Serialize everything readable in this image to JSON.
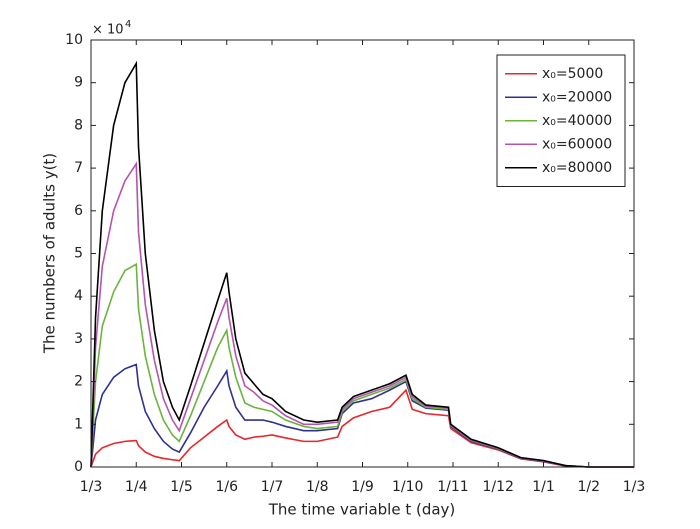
{
  "chart_data": {
    "type": "line",
    "x_label": "The time variable t (day)",
    "y_label": "The numbers of adults y(t)",
    "y_scale_base": "× 10",
    "y_scale_exponent": "4",
    "x": [
      0,
      0.1,
      0.25,
      0.5,
      0.75,
      1,
      1.05,
      1.2,
      1.4,
      1.6,
      1.8,
      1.95,
      2.2,
      2.5,
      2.8,
      3,
      3.05,
      3.2,
      3.4,
      3.6,
      3.8,
      4,
      4.3,
      4.7,
      5,
      5.45,
      5.55,
      5.8,
      6.2,
      6.6,
      6.96,
      7.1,
      7.4,
      7.9,
      7.95,
      8.4,
      9,
      9.5,
      10,
      10.5,
      11,
      12
    ],
    "series": [
      {
        "name": "x₀=5000",
        "color": "#e8262b",
        "values": [
          0,
          0.3,
          0.45,
          0.55,
          0.6,
          0.62,
          0.5,
          0.35,
          0.25,
          0.2,
          0.17,
          0.15,
          0.45,
          0.7,
          0.95,
          1.1,
          0.95,
          0.75,
          0.65,
          0.7,
          0.72,
          0.75,
          0.68,
          0.6,
          0.6,
          0.7,
          0.95,
          1.15,
          1.3,
          1.4,
          1.8,
          1.35,
          1.25,
          1.2,
          0.9,
          0.57,
          0.4,
          0.19,
          0.12,
          0.02,
          0,
          0
        ]
      },
      {
        "name": "x₀=20000",
        "color": "#2e3192",
        "values": [
          0,
          1.1,
          1.7,
          2.1,
          2.3,
          2.4,
          1.9,
          1.3,
          0.9,
          0.6,
          0.42,
          0.35,
          0.8,
          1.4,
          1.9,
          2.25,
          1.9,
          1.4,
          1.1,
          1.1,
          1.1,
          1.05,
          0.95,
          0.85,
          0.85,
          0.9,
          1.25,
          1.5,
          1.6,
          1.8,
          2.0,
          1.55,
          1.38,
          1.33,
          0.95,
          0.6,
          0.42,
          0.2,
          0.13,
          0.03,
          0,
          0
        ]
      },
      {
        "name": "x₀=40000",
        "color": "#6ab43e",
        "values": [
          0,
          2.0,
          3.3,
          4.1,
          4.6,
          4.75,
          3.7,
          2.6,
          1.7,
          1.1,
          0.75,
          0.6,
          1.2,
          2.0,
          2.8,
          3.2,
          2.8,
          2.1,
          1.5,
          1.4,
          1.35,
          1.3,
          1.1,
          0.95,
          0.9,
          0.95,
          1.3,
          1.55,
          1.7,
          1.85,
          2.05,
          1.6,
          1.4,
          1.35,
          0.97,
          0.62,
          0.43,
          0.21,
          0.14,
          0.03,
          0,
          0
        ]
      },
      {
        "name": "x₀=60000",
        "color": "#b554b0",
        "values": [
          0,
          2.8,
          4.7,
          6.0,
          6.7,
          7.1,
          5.5,
          3.8,
          2.5,
          1.6,
          1.1,
          0.85,
          1.6,
          2.5,
          3.4,
          3.95,
          3.5,
          2.6,
          1.9,
          1.75,
          1.55,
          1.45,
          1.2,
          1.0,
          1.0,
          1.05,
          1.35,
          1.6,
          1.75,
          1.9,
          2.1,
          1.65,
          1.43,
          1.38,
          0.98,
          0.63,
          0.44,
          0.21,
          0.14,
          0.03,
          0,
          0
        ]
      },
      {
        "name": "x₀=80000",
        "color": "#000000",
        "values": [
          0,
          3.5,
          6.0,
          8.0,
          9.0,
          9.45,
          7.5,
          5.0,
          3.2,
          2.0,
          1.4,
          1.1,
          1.9,
          2.9,
          3.9,
          4.55,
          4.1,
          3.0,
          2.2,
          1.95,
          1.7,
          1.6,
          1.3,
          1.1,
          1.05,
          1.1,
          1.4,
          1.65,
          1.8,
          1.95,
          2.15,
          1.7,
          1.45,
          1.4,
          1.0,
          0.65,
          0.45,
          0.22,
          0.15,
          0.03,
          0,
          0
        ]
      }
    ],
    "xlim": [
      0,
      12
    ],
    "xticks": [
      {
        "value": 0,
        "label": "1/3"
      },
      {
        "value": 1,
        "label": "1/4"
      },
      {
        "value": 2,
        "label": "1/5"
      },
      {
        "value": 3,
        "label": "1/6"
      },
      {
        "value": 4,
        "label": "1/7"
      },
      {
        "value": 5,
        "label": "1/8"
      },
      {
        "value": 6,
        "label": "1/9"
      },
      {
        "value": 7,
        "label": "1/10"
      },
      {
        "value": 8,
        "label": "1/11"
      },
      {
        "value": 9,
        "label": "1/12"
      },
      {
        "value": 10,
        "label": "1/1"
      },
      {
        "value": 11,
        "label": "1/2"
      },
      {
        "value": 12,
        "label": "1/3"
      }
    ],
    "ylim": [
      0,
      10
    ],
    "yticks": [
      0,
      1,
      2,
      3,
      4,
      5,
      6,
      7,
      8,
      9,
      10
    ],
    "legend": "upper right",
    "grid": false
  }
}
